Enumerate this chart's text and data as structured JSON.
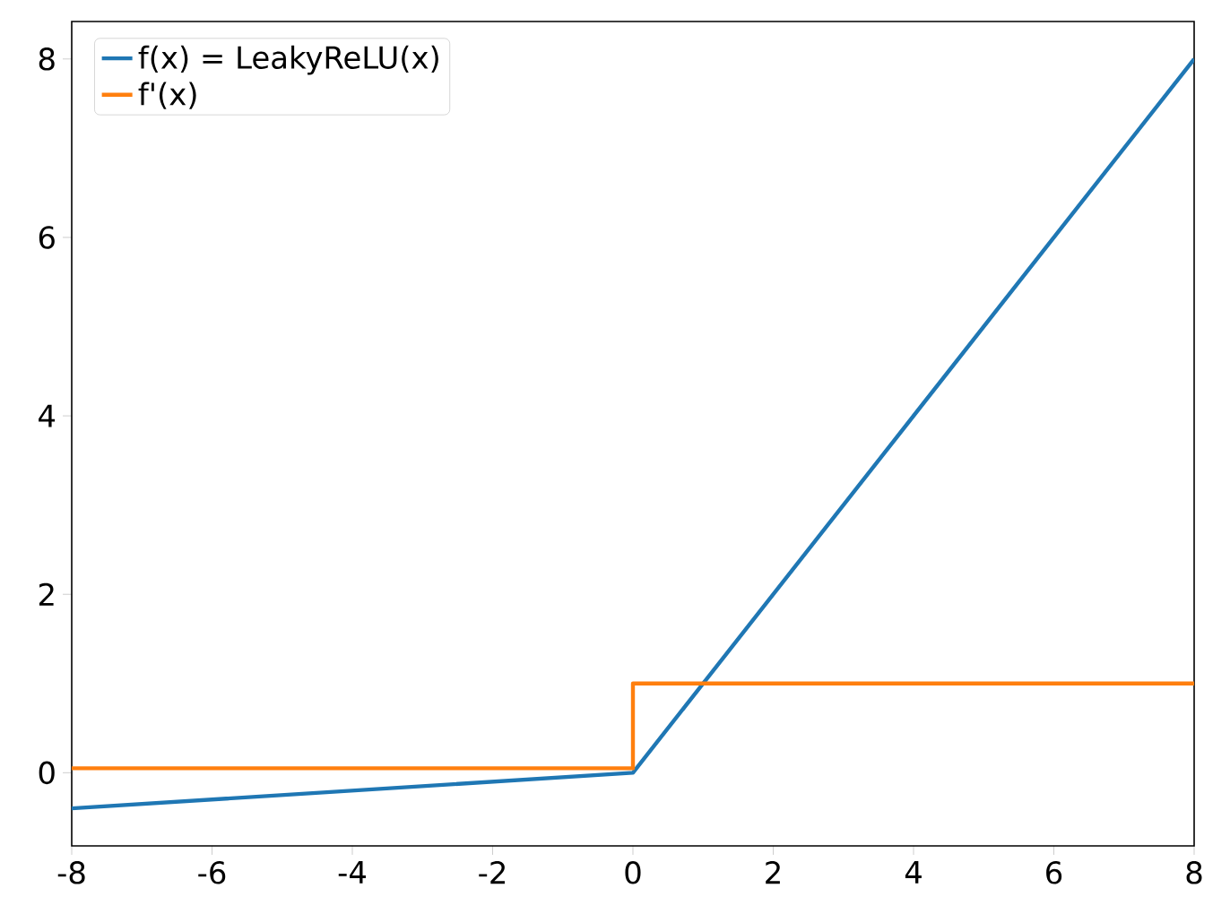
{
  "chart_data": {
    "type": "line",
    "xlim": [
      -8,
      8
    ],
    "ylim": [
      -0.82,
      8.42
    ],
    "xticks": [
      -8,
      -6,
      -4,
      -2,
      0,
      2,
      4,
      6,
      8
    ],
    "yticks": [
      0,
      2,
      4,
      6,
      8
    ],
    "legend": "top left",
    "grid": false,
    "series": [
      {
        "name": "f(x) = LeakyReLU(x)",
        "color": "#1f77b4",
        "x": [
          -8,
          0,
          8
        ],
        "values": [
          -0.4,
          0,
          8
        ]
      },
      {
        "name": "f'(x)",
        "color": "#ff7f0e",
        "x": [
          -8,
          0,
          0,
          8
        ],
        "values": [
          0.05,
          0.05,
          1,
          1
        ]
      }
    ]
  }
}
